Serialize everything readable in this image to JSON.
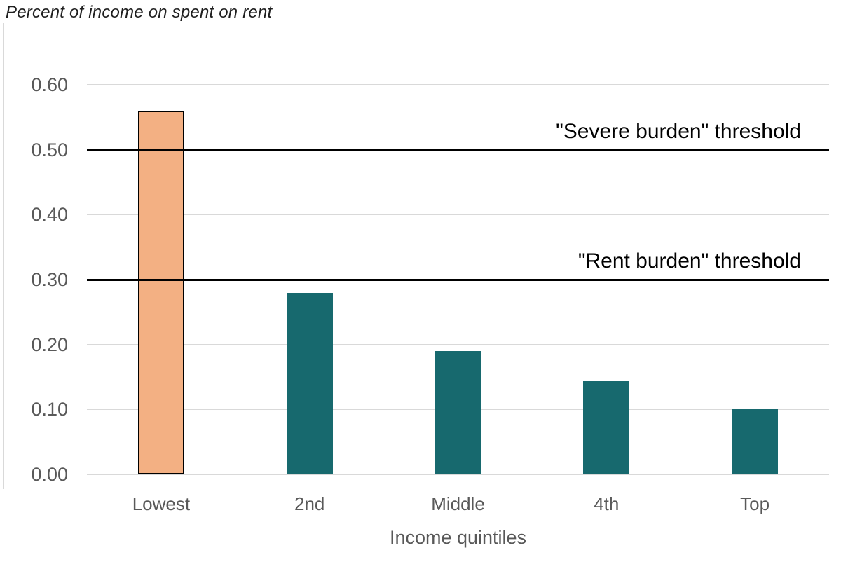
{
  "title": "Percent of income on spent on rent",
  "colors": {
    "highlight_bar_fill": "#F3B083",
    "highlight_bar_outline": "#000000",
    "bar_fill": "#17696E",
    "gridline": "#D9D9D9",
    "axis_label": "#595959",
    "reference_line": "#000000",
    "title_text": "#1F1F1F"
  },
  "chart_data": {
    "type": "bar",
    "title": "Percent of income on spent on rent",
    "xlabel": "Income quintiles",
    "ylabel": "",
    "categories": [
      "Lowest",
      "2nd",
      "Middle",
      "4th",
      "Top"
    ],
    "values": [
      0.56,
      0.28,
      0.19,
      0.145,
      0.1
    ],
    "bar_colors": [
      "#F3B083",
      "#17696E",
      "#17696E",
      "#17696E",
      "#17696E"
    ],
    "highlighted_category": "Lowest",
    "ylim": [
      0,
      0.6
    ],
    "yticks": [
      {
        "value": 0.6,
        "label": "0.60"
      },
      {
        "value": 0.5,
        "label": "0.50"
      },
      {
        "value": 0.4,
        "label": "0.40"
      },
      {
        "value": 0.3,
        "label": "0.30"
      },
      {
        "value": 0.2,
        "label": "0.20"
      },
      {
        "value": 0.1,
        "label": "0.10"
      },
      {
        "value": 0.0,
        "label": "0.00"
      }
    ],
    "grid": true,
    "legend": "none",
    "reference_lines": [
      {
        "value": 0.5,
        "label": "\"Severe burden\" threshold",
        "color": "#000000"
      },
      {
        "value": 0.3,
        "label": "\"Rent burden\" threshold",
        "color": "#000000"
      }
    ]
  }
}
